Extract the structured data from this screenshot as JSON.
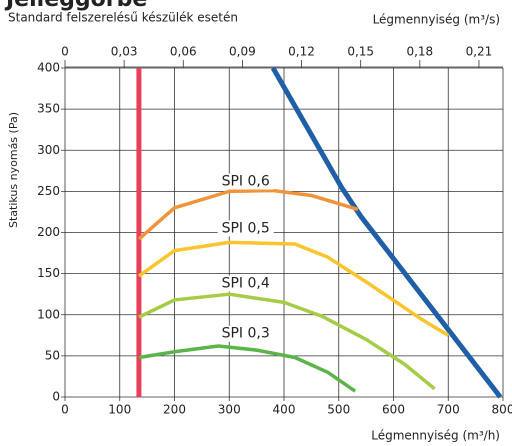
{
  "chart_data": {
    "type": "line",
    "title": "Jelleggörbe",
    "subtitle": "Standard felszerelésű készülék esetén",
    "xlabel": "Légmennyiség (m³/h)",
    "x2label": "Légmennyiség (m³/s)",
    "ylabel": "Statikus nyomás (Pa)",
    "xlim": [
      0,
      800
    ],
    "xticks": [
      0,
      100,
      200,
      300,
      400,
      500,
      600,
      700,
      800
    ],
    "x2lim": [
      0,
      0.2222
    ],
    "x2ticks": [
      0,
      {
        "value": 0.03,
        "label": "0,03"
      },
      {
        "value": 0.06,
        "label": "0,06"
      },
      {
        "value": 0.09,
        "label": "0,09"
      },
      {
        "value": 0.12,
        "label": "0,12"
      },
      {
        "value": 0.15,
        "label": "0,15"
      },
      {
        "value": 0.18,
        "label": "0,18"
      },
      {
        "value": 0.21,
        "label": "0,21"
      }
    ],
    "ylim": [
      0,
      400
    ],
    "yticks": [
      0,
      50,
      100,
      150,
      200,
      250,
      300,
      350,
      400
    ],
    "grid": true,
    "series": [
      {
        "color": "#e8405a",
        "x": [
          135,
          135
        ],
        "values": [
          0,
          400
        ]
      },
      {
        "color": "#1f5fa8",
        "x": [
          380,
          505,
          540,
          795
        ],
        "values": [
          400,
          255,
          220,
          0
        ]
      },
      {
        "name": "SPI 0,6",
        "color": "#f0943a",
        "x": [
          135,
          200,
          300,
          380,
          450,
          535
        ],
        "values": [
          192,
          230,
          250,
          251,
          245,
          228
        ],
        "label_at": [
          330,
          262
        ]
      },
      {
        "name": "SPI 0,5",
        "color": "#f9c42c",
        "x": [
          135,
          200,
          300,
          420,
          480,
          550,
          650,
          700
        ],
        "values": [
          147,
          178,
          188,
          186,
          170,
          140,
          95,
          75
        ],
        "label_at": [
          330,
          205
        ]
      },
      {
        "name": "SPI 0,4",
        "color": "#a5cc45",
        "x": [
          135,
          200,
          300,
          400,
          470,
          550,
          620,
          675
        ],
        "values": [
          97,
          118,
          125,
          115,
          98,
          70,
          40,
          10
        ],
        "label_at": [
          330,
          138
        ]
      },
      {
        "name": "SPI 0,3",
        "color": "#5bb449",
        "x": [
          135,
          200,
          280,
          350,
          420,
          480,
          530
        ],
        "values": [
          48,
          55,
          62,
          57,
          48,
          30,
          7
        ],
        "label_at": [
          330,
          77
        ]
      }
    ]
  }
}
